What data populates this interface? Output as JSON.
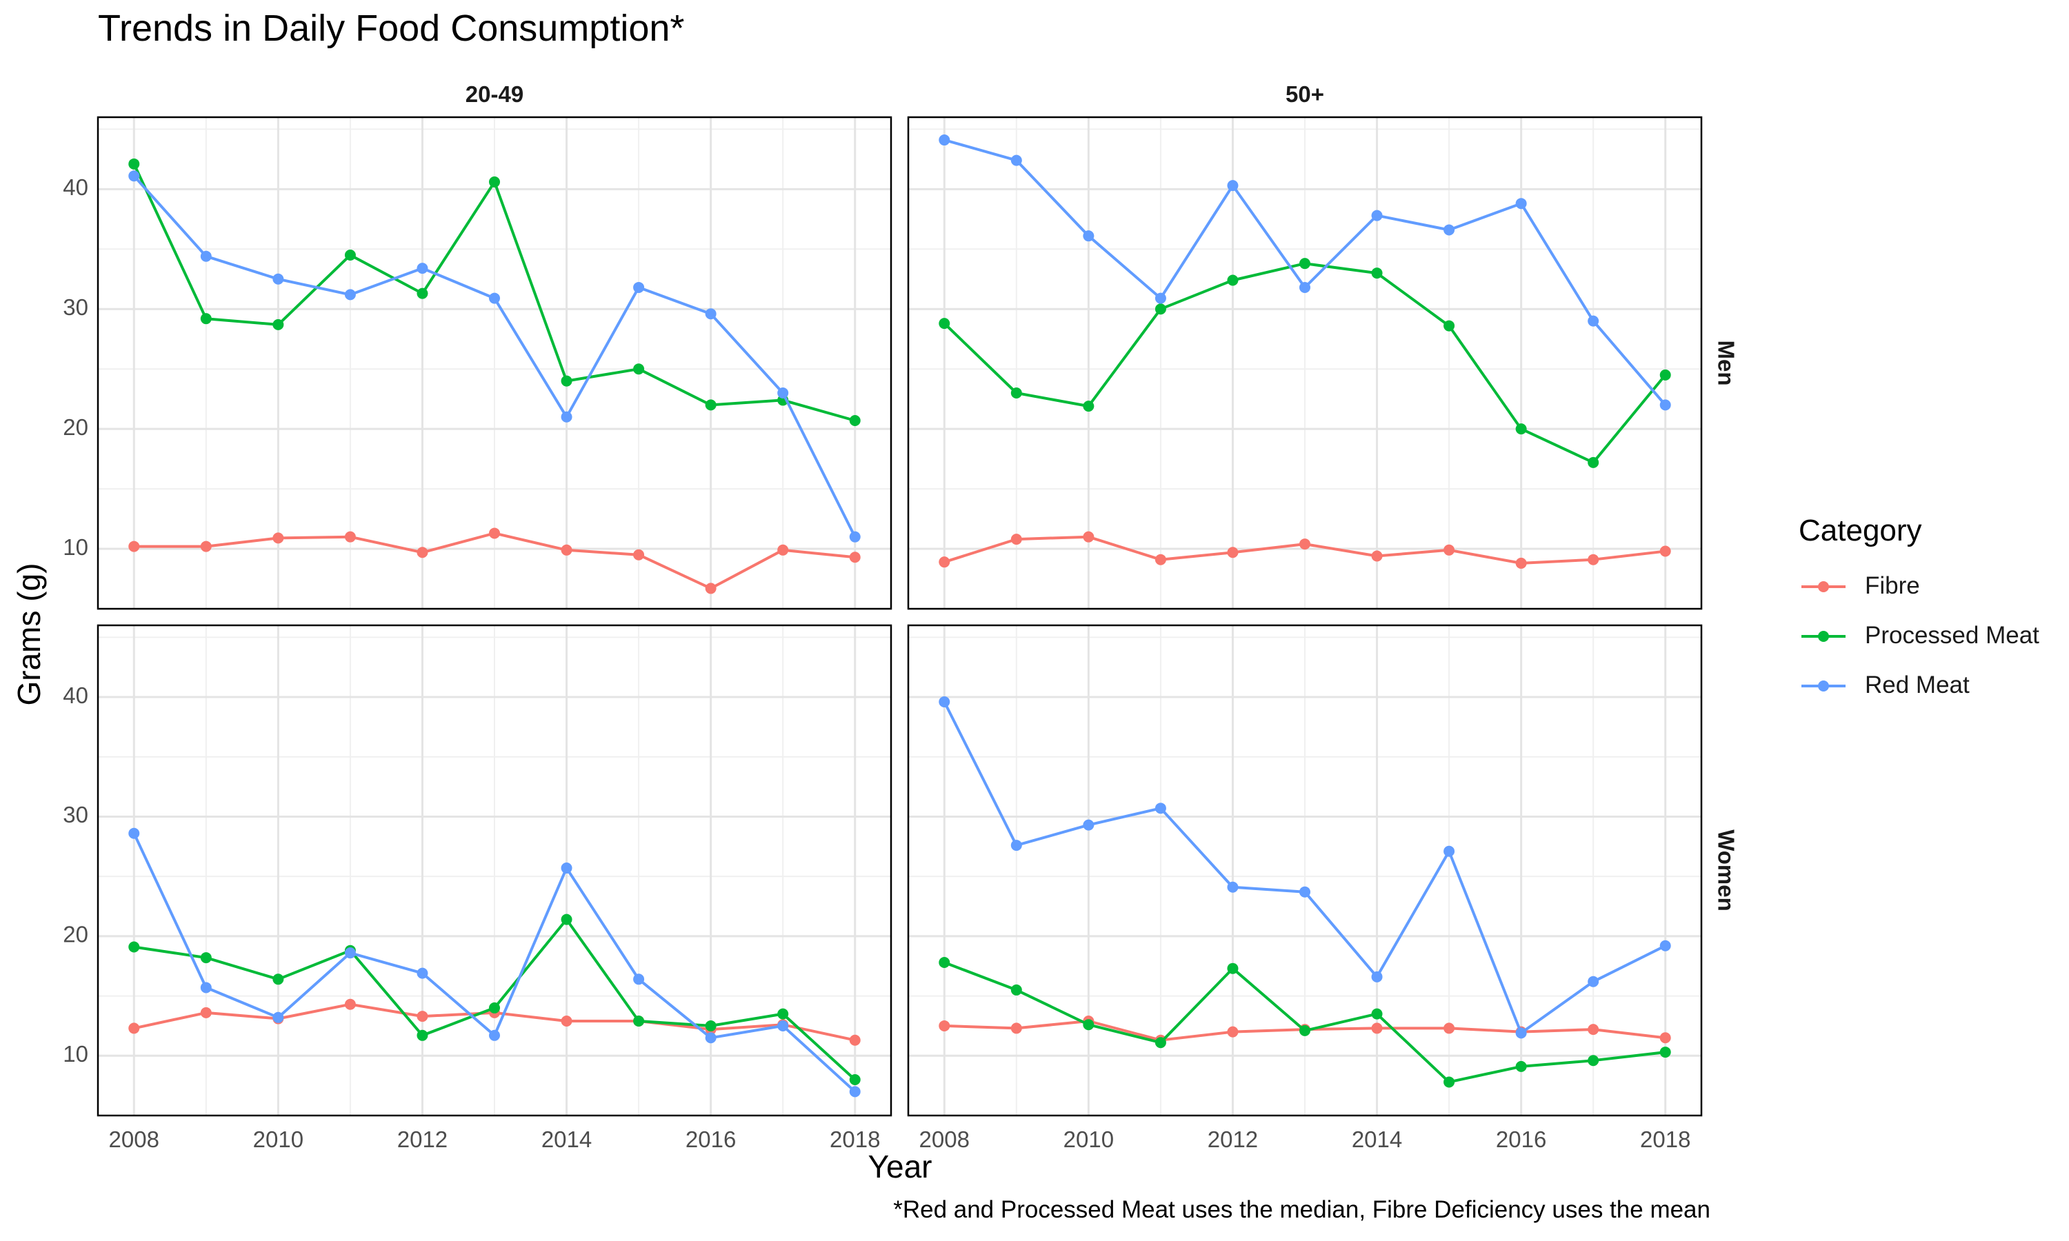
{
  "chart_data": {
    "type": "line",
    "title": "Trends in Daily Food Consumption*",
    "footnote": "*Red and Processed Meat uses the median, Fibre Deficiency uses the mean",
    "xlabel": "Year",
    "ylabel": "Grams (g)",
    "legend_title": "Category",
    "legend_position": "right",
    "grid": true,
    "x": [
      2008,
      2009,
      2010,
      2011,
      2012,
      2013,
      2014,
      2015,
      2016,
      2017,
      2018
    ],
    "x_ticks": [
      2008,
      2010,
      2012,
      2014,
      2016,
      2018
    ],
    "x_range": [
      2007.5,
      2018.5
    ],
    "y_ticks": [
      10,
      20,
      30,
      40
    ],
    "y_range": [
      5,
      46
    ],
    "facet_columns": [
      "20-49",
      "50+"
    ],
    "facet_rows": [
      "Men",
      "Women"
    ],
    "series_names": [
      "Fibre",
      "Processed Meat",
      "Red Meat"
    ],
    "colors": {
      "Fibre": "#F8766D",
      "Processed Meat": "#00BA38",
      "Red Meat": "#619CFF"
    },
    "panels": [
      {
        "column": "20-49",
        "row": "Men",
        "series": [
          {
            "name": "Fibre",
            "values": [
              10.2,
              10.2,
              10.9,
              11.0,
              9.7,
              11.3,
              9.9,
              9.5,
              6.7,
              9.9,
              9.3
            ]
          },
          {
            "name": "Processed Meat",
            "values": [
              42.1,
              29.2,
              28.7,
              34.5,
              31.3,
              40.6,
              24.0,
              25.0,
              22.0,
              22.4,
              20.7
            ]
          },
          {
            "name": "Red Meat",
            "values": [
              41.1,
              34.4,
              32.5,
              31.2,
              33.4,
              30.9,
              21.0,
              31.8,
              29.6,
              23.0,
              11.0
            ]
          }
        ]
      },
      {
        "column": "50+",
        "row": "Men",
        "series": [
          {
            "name": "Fibre",
            "values": [
              8.9,
              10.8,
              11.0,
              9.1,
              9.7,
              10.4,
              9.4,
              9.9,
              8.8,
              9.1,
              9.8
            ]
          },
          {
            "name": "Processed Meat",
            "values": [
              28.8,
              23.0,
              21.9,
              30.0,
              32.4,
              33.8,
              33.0,
              28.6,
              20.0,
              17.2,
              24.5
            ]
          },
          {
            "name": "Red Meat",
            "values": [
              44.1,
              42.4,
              36.1,
              30.9,
              40.3,
              31.8,
              37.8,
              36.6,
              38.8,
              29.0,
              22.0
            ]
          }
        ]
      },
      {
        "column": "20-49",
        "row": "Women",
        "series": [
          {
            "name": "Fibre",
            "values": [
              12.3,
              13.6,
              13.1,
              14.3,
              13.3,
              13.6,
              12.9,
              12.9,
              12.2,
              12.6,
              11.3
            ]
          },
          {
            "name": "Processed Meat",
            "values": [
              19.1,
              18.2,
              16.4,
              18.8,
              11.7,
              14.0,
              21.4,
              12.9,
              12.5,
              13.5,
              8.0
            ]
          },
          {
            "name": "Red Meat",
            "values": [
              28.6,
              15.7,
              13.2,
              18.6,
              16.9,
              11.7,
              25.7,
              16.4,
              11.5,
              12.5,
              7.0
            ]
          }
        ]
      },
      {
        "column": "50+",
        "row": "Women",
        "series": [
          {
            "name": "Fibre",
            "values": [
              12.5,
              12.3,
              12.9,
              11.3,
              12.0,
              12.2,
              12.3,
              12.3,
              12.0,
              12.2,
              11.5
            ]
          },
          {
            "name": "Processed Meat",
            "values": [
              17.8,
              15.5,
              12.6,
              11.1,
              17.3,
              12.1,
              13.5,
              7.8,
              9.1,
              9.6,
              10.3
            ]
          },
          {
            "name": "Red Meat",
            "values": [
              39.6,
              27.6,
              29.3,
              30.7,
              24.1,
              23.7,
              16.6,
              27.1,
              11.9,
              16.2,
              19.2
            ]
          }
        ]
      }
    ]
  }
}
